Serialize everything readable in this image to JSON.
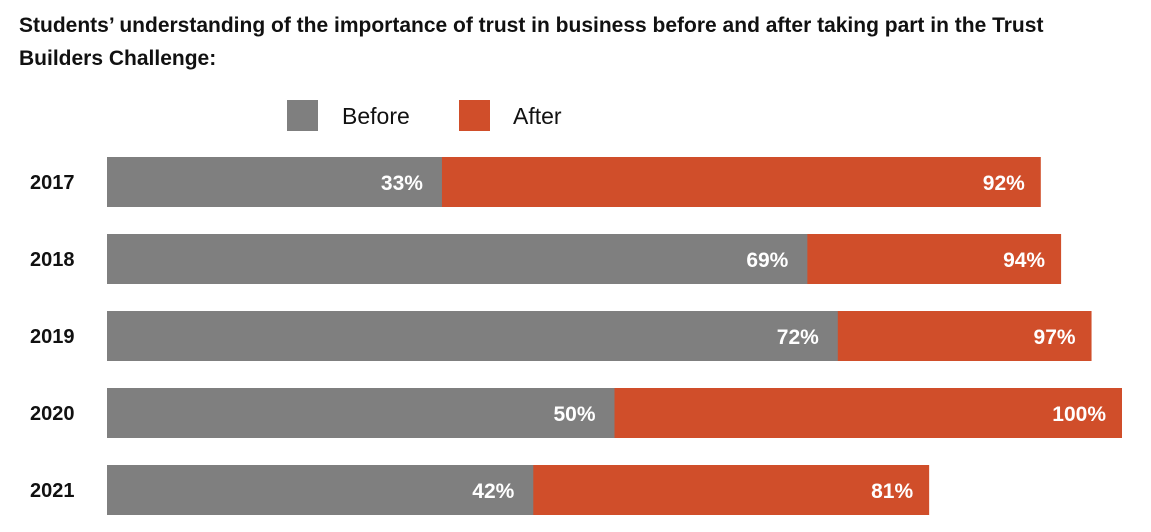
{
  "chart_data": {
    "type": "bar",
    "title": "Students’ understanding of the importance of trust in business before and after taking part in the Trust Builders Challenge:",
    "orientation": "horizontal",
    "categories": [
      "2017",
      "2018",
      "2019",
      "2020",
      "2021"
    ],
    "series": [
      {
        "name": "Before",
        "color": "#7f7f7f",
        "values": [
          33,
          69,
          72,
          50,
          42
        ],
        "labels": [
          "33%",
          "69%",
          "72%",
          "50%",
          "42%"
        ]
      },
      {
        "name": "After",
        "color": "#d04e2a",
        "values": [
          92,
          94,
          97,
          100,
          81
        ],
        "labels": [
          "92%",
          "94%",
          "97%",
          "100%",
          "81%"
        ]
      }
    ],
    "xlim": [
      0,
      100
    ],
    "legend": "top",
    "grid": false
  }
}
